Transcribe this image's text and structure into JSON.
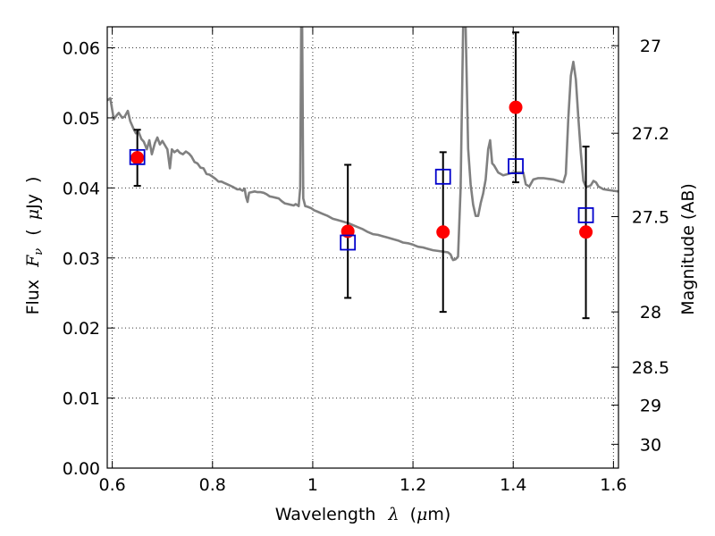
{
  "chart_data": {
    "type": "scatter",
    "xlabel": {
      "prefix": "Wavelength",
      "symbol": "λ",
      "unit_open": "(",
      "unit_mu": "μ",
      "unit": "m)"
    },
    "ylabel": {
      "prefix": "Flux",
      "symbol": "F",
      "subscript": "ν",
      "unit_open": "(",
      "unit_mu": "μ",
      "unit": "Jy",
      "unit_close": ")"
    },
    "y2label": "Magnitude (AB)",
    "xlim": [
      0.59,
      1.61
    ],
    "ylim": [
      0.0,
      0.063
    ],
    "grid": true,
    "x_ticks": [
      {
        "value": 0.6,
        "label": "0.6"
      },
      {
        "value": 0.8,
        "label": "0.8"
      },
      {
        "value": 1.0,
        "label": "1"
      },
      {
        "value": 1.2,
        "label": "1.2"
      },
      {
        "value": 1.4,
        "label": "1.4"
      },
      {
        "value": 1.6,
        "label": "1.6"
      }
    ],
    "y_ticks": [
      {
        "value": 0.0,
        "label": "0.00"
      },
      {
        "value": 0.01,
        "label": "0.01"
      },
      {
        "value": 0.02,
        "label": "0.02"
      },
      {
        "value": 0.03,
        "label": "0.03"
      },
      {
        "value": 0.04,
        "label": "0.04"
      },
      {
        "value": 0.05,
        "label": "0.05"
      },
      {
        "value": 0.06,
        "label": "0.06"
      }
    ],
    "y2_ticks": [
      {
        "flux": 0.0603,
        "label": "27"
      },
      {
        "flux": 0.0478,
        "label": "27.2"
      },
      {
        "flux": 0.0359,
        "label": "27.5"
      },
      {
        "flux": 0.0223,
        "label": "28"
      },
      {
        "flux": 0.0144,
        "label": "28.5"
      },
      {
        "flux": 0.009,
        "label": "29"
      },
      {
        "flux": 0.0034,
        "label": "30"
      }
    ],
    "colors": {
      "observed": "#ff0000",
      "model_band": "#0000cc",
      "sed": "#808080",
      "errorbar": "#000000"
    },
    "series": [
      {
        "kind": "line",
        "points": [
          [
            0.59,
            0.0525
          ],
          [
            0.596,
            0.0528
          ],
          [
            0.603,
            0.0498
          ],
          [
            0.608,
            0.0503
          ],
          [
            0.613,
            0.0507
          ],
          [
            0.62,
            0.05
          ],
          [
            0.625,
            0.0502
          ],
          [
            0.631,
            0.051
          ],
          [
            0.636,
            0.0495
          ],
          [
            0.642,
            0.0485
          ],
          [
            0.647,
            0.0478
          ],
          [
            0.652,
            0.0481
          ],
          [
            0.658,
            0.047
          ],
          [
            0.663,
            0.0466
          ],
          [
            0.669,
            0.0455
          ],
          [
            0.674,
            0.0468
          ],
          [
            0.679,
            0.0448
          ],
          [
            0.685,
            0.0464
          ],
          [
            0.69,
            0.0472
          ],
          [
            0.695,
            0.0462
          ],
          [
            0.7,
            0.0467
          ],
          [
            0.705,
            0.0461
          ],
          [
            0.71,
            0.0455
          ],
          [
            0.715,
            0.0428
          ],
          [
            0.719,
            0.0455
          ],
          [
            0.724,
            0.0451
          ],
          [
            0.73,
            0.0454
          ],
          [
            0.735,
            0.045
          ],
          [
            0.741,
            0.0448
          ],
          [
            0.747,
            0.0452
          ],
          [
            0.753,
            0.0449
          ],
          [
            0.758,
            0.0445
          ],
          [
            0.764,
            0.0437
          ],
          [
            0.77,
            0.0435
          ],
          [
            0.776,
            0.0429
          ],
          [
            0.782,
            0.0428
          ],
          [
            0.788,
            0.042
          ],
          [
            0.794,
            0.0419
          ],
          [
            0.8,
            0.0416
          ],
          [
            0.806,
            0.0413
          ],
          [
            0.812,
            0.0409
          ],
          [
            0.818,
            0.0409
          ],
          [
            0.824,
            0.0407
          ],
          [
            0.83,
            0.0405
          ],
          [
            0.836,
            0.0403
          ],
          [
            0.842,
            0.0401
          ],
          [
            0.849,
            0.0398
          ],
          [
            0.855,
            0.0398
          ],
          [
            0.86,
            0.0396
          ],
          [
            0.864,
            0.0399
          ],
          [
            0.867,
            0.0387
          ],
          [
            0.87,
            0.038
          ],
          [
            0.873,
            0.0393
          ],
          [
            0.878,
            0.0394
          ],
          [
            0.884,
            0.0395
          ],
          [
            0.89,
            0.0394
          ],
          [
            0.896,
            0.0394
          ],
          [
            0.902,
            0.0393
          ],
          [
            0.908,
            0.0391
          ],
          [
            0.914,
            0.0388
          ],
          [
            0.92,
            0.0387
          ],
          [
            0.926,
            0.0386
          ],
          [
            0.932,
            0.0385
          ],
          [
            0.938,
            0.0381
          ],
          [
            0.944,
            0.0378
          ],
          [
            0.95,
            0.0377
          ],
          [
            0.956,
            0.0376
          ],
          [
            0.962,
            0.0375
          ],
          [
            0.966,
            0.0377
          ],
          [
            0.972,
            0.0374
          ],
          [
            0.975,
            0.04
          ],
          [
            0.977,
            0.063
          ],
          [
            0.979,
            0.063
          ],
          [
            0.981,
            0.0385
          ],
          [
            0.985,
            0.0374
          ],
          [
            0.99,
            0.0373
          ],
          [
            0.997,
            0.0371
          ],
          [
            1.003,
            0.0368
          ],
          [
            1.01,
            0.0366
          ],
          [
            1.02,
            0.0363
          ],
          [
            1.03,
            0.036
          ],
          [
            1.04,
            0.0356
          ],
          [
            1.05,
            0.0354
          ],
          [
            1.06,
            0.0352
          ],
          [
            1.07,
            0.035
          ],
          [
            1.08,
            0.0347
          ],
          [
            1.09,
            0.0344
          ],
          [
            1.1,
            0.0341
          ],
          [
            1.11,
            0.0337
          ],
          [
            1.12,
            0.0334
          ],
          [
            1.13,
            0.0333
          ],
          [
            1.14,
            0.0331
          ],
          [
            1.15,
            0.0329
          ],
          [
            1.16,
            0.0327
          ],
          [
            1.17,
            0.0325
          ],
          [
            1.18,
            0.0322
          ],
          [
            1.19,
            0.0321
          ],
          [
            1.2,
            0.0319
          ],
          [
            1.21,
            0.0316
          ],
          [
            1.22,
            0.0315
          ],
          [
            1.23,
            0.0313
          ],
          [
            1.24,
            0.0311
          ],
          [
            1.25,
            0.031
          ],
          [
            1.26,
            0.0309
          ],
          [
            1.27,
            0.0308
          ],
          [
            1.275,
            0.0305
          ],
          [
            1.28,
            0.0297
          ],
          [
            1.285,
            0.0298
          ],
          [
            1.29,
            0.0302
          ],
          [
            1.295,
            0.04
          ],
          [
            1.3,
            0.063
          ],
          [
            1.305,
            0.063
          ],
          [
            1.31,
            0.0456
          ],
          [
            1.315,
            0.0405
          ],
          [
            1.32,
            0.0376
          ],
          [
            1.325,
            0.036
          ],
          [
            1.33,
            0.036
          ],
          [
            1.335,
            0.0378
          ],
          [
            1.34,
            0.0392
          ],
          [
            1.345,
            0.0412
          ],
          [
            1.35,
            0.0455
          ],
          [
            1.354,
            0.0468
          ],
          [
            1.358,
            0.0435
          ],
          [
            1.362,
            0.0432
          ],
          [
            1.37,
            0.0422
          ],
          [
            1.38,
            0.0418
          ],
          [
            1.39,
            0.042
          ],
          [
            1.4,
            0.0422
          ],
          [
            1.41,
            0.0422
          ],
          [
            1.42,
            0.0422
          ],
          [
            1.425,
            0.0405
          ],
          [
            1.432,
            0.0402
          ],
          [
            1.44,
            0.0412
          ],
          [
            1.45,
            0.0414
          ],
          [
            1.46,
            0.0414
          ],
          [
            1.47,
            0.0413
          ],
          [
            1.48,
            0.0412
          ],
          [
            1.49,
            0.041
          ],
          [
            1.5,
            0.0408
          ],
          [
            1.505,
            0.042
          ],
          [
            1.51,
            0.05
          ],
          [
            1.515,
            0.056
          ],
          [
            1.52,
            0.058
          ],
          [
            1.525,
            0.0555
          ],
          [
            1.53,
            0.05
          ],
          [
            1.535,
            0.045
          ],
          [
            1.54,
            0.041
          ],
          [
            1.545,
            0.0402
          ],
          [
            1.55,
            0.0402
          ],
          [
            1.555,
            0.0404
          ],
          [
            1.56,
            0.041
          ],
          [
            1.565,
            0.0408
          ],
          [
            1.57,
            0.0402
          ],
          [
            1.58,
            0.0398
          ],
          [
            1.59,
            0.0397
          ],
          [
            1.6,
            0.0396
          ],
          [
            1.61,
            0.0395
          ]
        ]
      },
      {
        "kind": "errorbar",
        "points": [
          {
            "x": 0.65,
            "y": 0.0443,
            "low": 0.0403,
            "high": 0.0483
          },
          {
            "x": 1.07,
            "y": 0.0338,
            "low": 0.0243,
            "high": 0.0433
          },
          {
            "x": 1.26,
            "y": 0.0337,
            "low": 0.0223,
            "high": 0.0451
          },
          {
            "x": 1.405,
            "y": 0.0515,
            "low": 0.0408,
            "high": 0.0622
          },
          {
            "x": 1.545,
            "y": 0.0337,
            "low": 0.0214,
            "high": 0.0459
          }
        ]
      },
      {
        "kind": "square",
        "points": [
          {
            "x": 0.65,
            "y": 0.0444
          },
          {
            "x": 1.07,
            "y": 0.0322
          },
          {
            "x": 1.26,
            "y": 0.0416
          },
          {
            "x": 1.405,
            "y": 0.0431
          },
          {
            "x": 1.545,
            "y": 0.0361
          }
        ]
      }
    ]
  }
}
